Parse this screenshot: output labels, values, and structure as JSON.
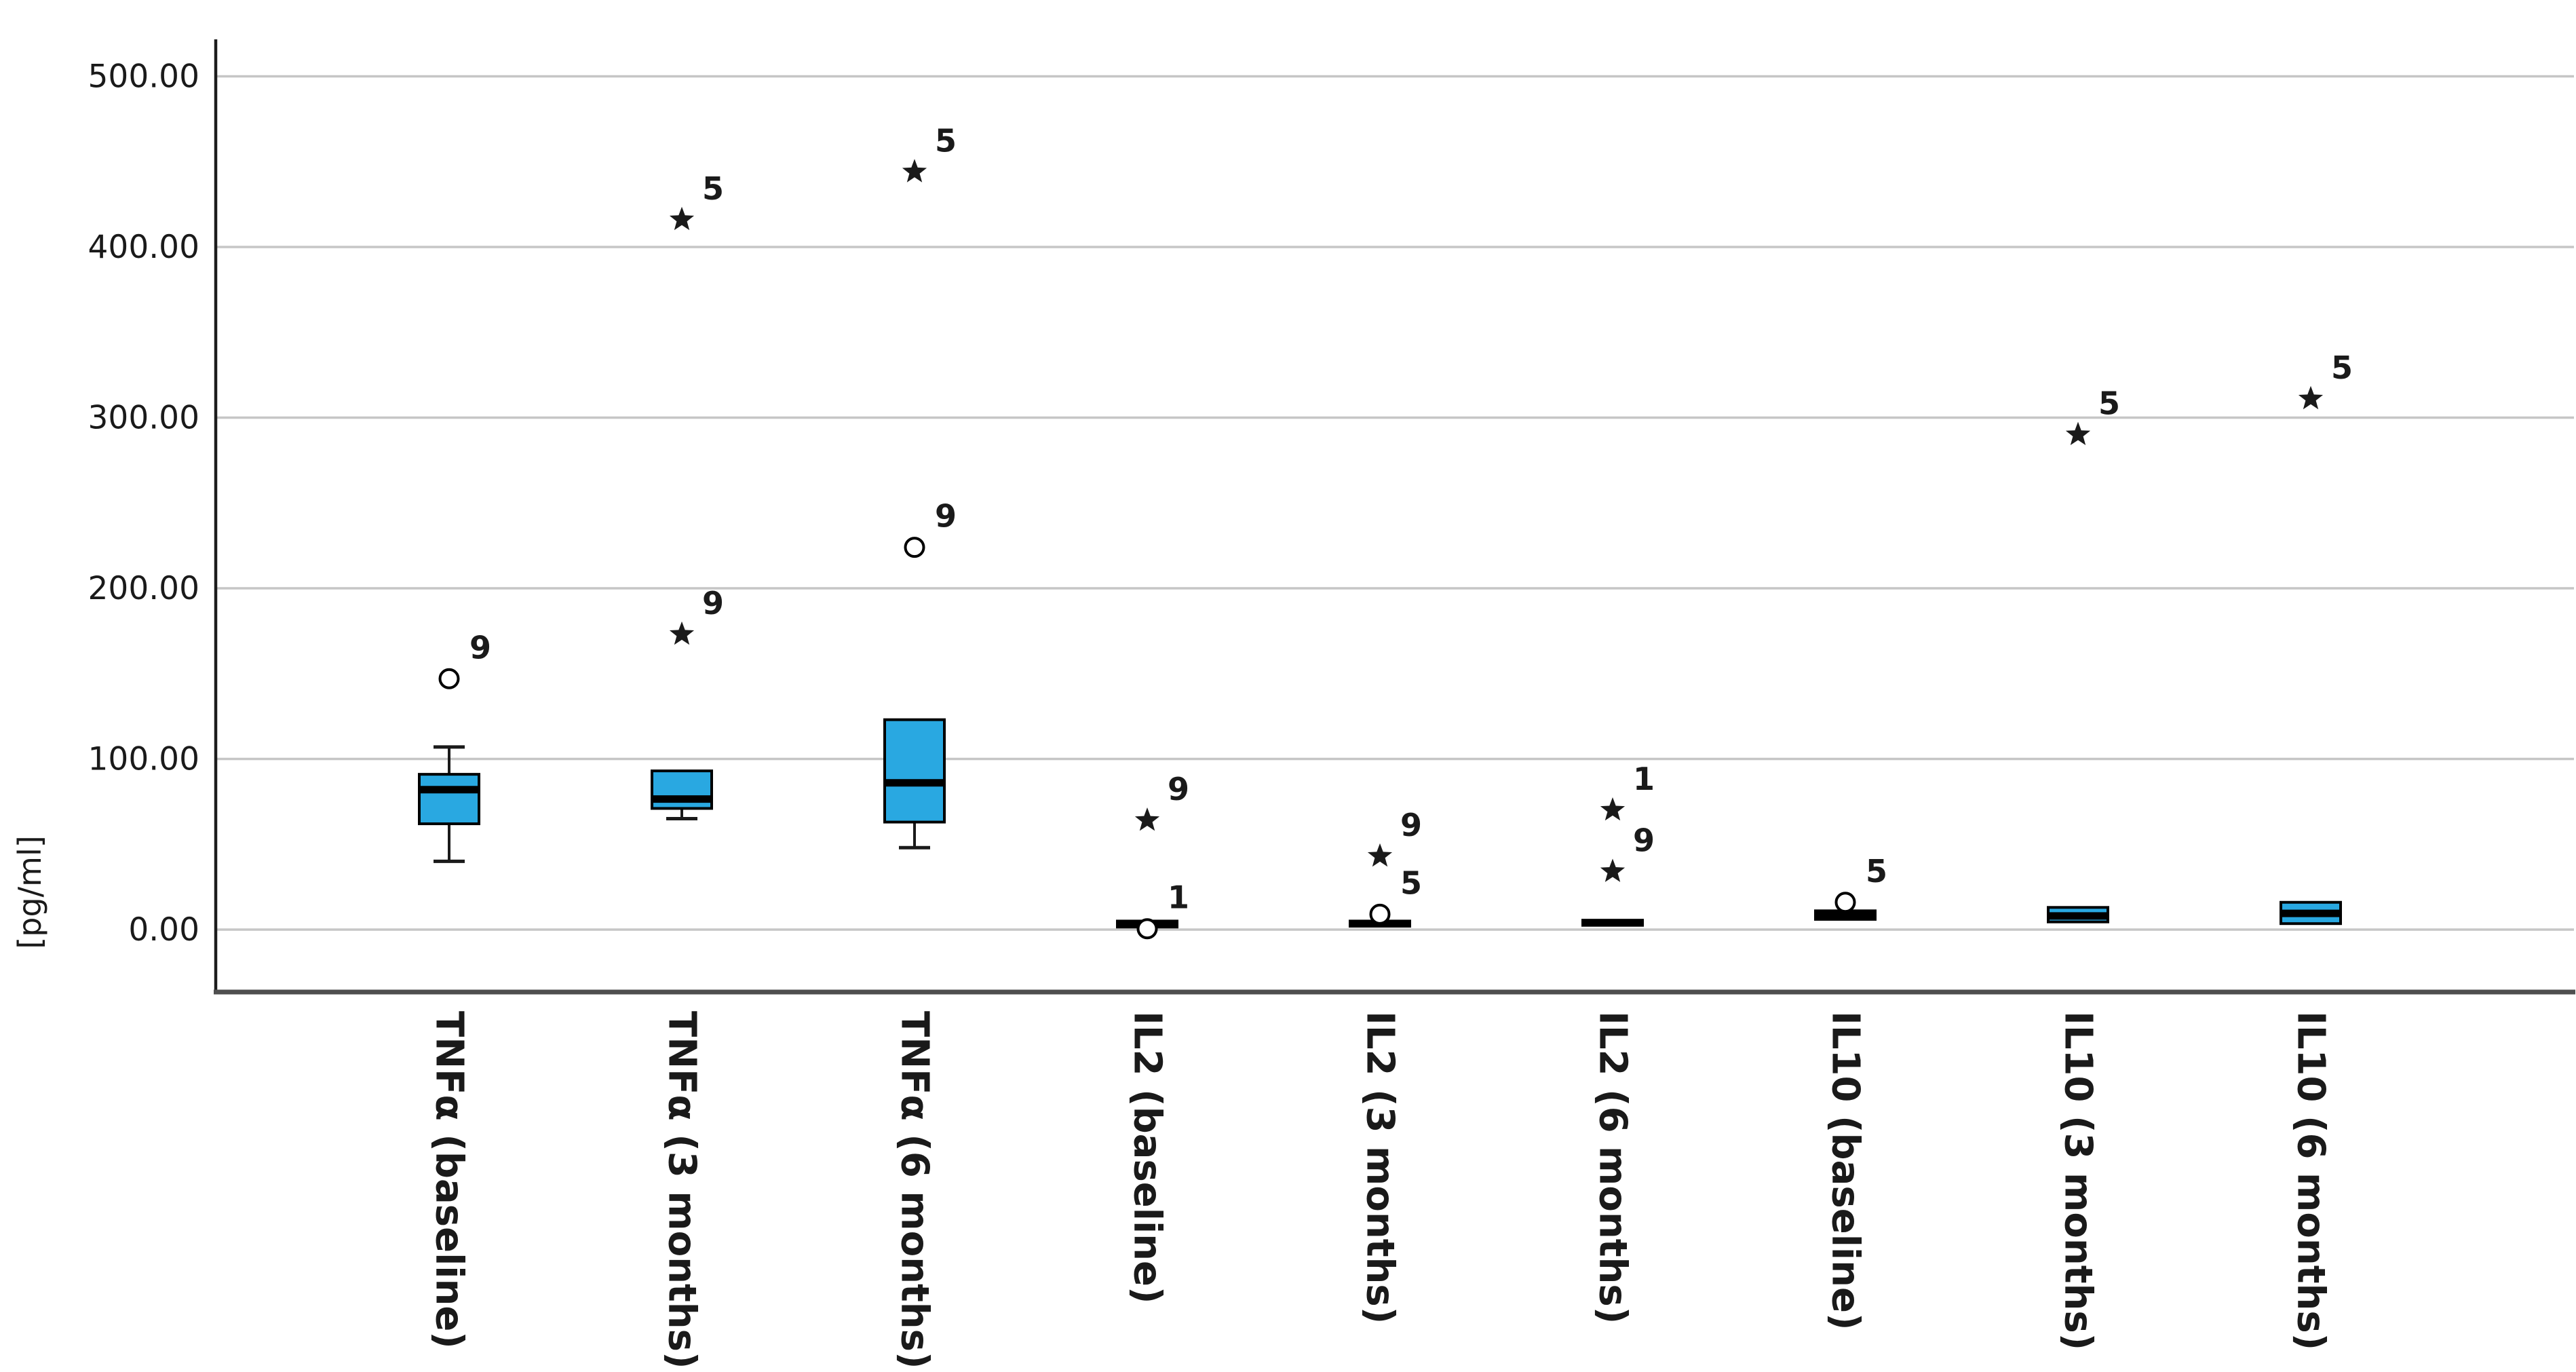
{
  "page": {
    "background": "#ffffff"
  },
  "chart_data": {
    "type": "boxplot",
    "title": "",
    "xlabel": "",
    "ylabel": "[pg/ml]",
    "ylim": [
      -36,
      522
    ],
    "grid": true,
    "legend": "none",
    "yticks": [
      {
        "value": 500,
        "label": "500.00"
      },
      {
        "value": 400,
        "label": "400.00"
      },
      {
        "value": 300,
        "label": "300.00"
      },
      {
        "value": 200,
        "label": "200.00"
      },
      {
        "value": 100,
        "label": "100.00"
      },
      {
        "value": 0,
        "label": "0.00"
      }
    ],
    "categories": [
      "TNFα (baseline)",
      "TNFα (3 months)",
      "TNFα (6 months)",
      "IL2 (baseline)",
      "IL2 (3 months)",
      "IL2 (6 months)",
      "IL10 (baseline)",
      "IL10 (3 months)",
      "IL10 (6 months)"
    ],
    "colors": {
      "box_fill": "#29a8e1",
      "box_stroke": "#000000",
      "median": "#000000",
      "whisker": "#1a1a1a",
      "gridline": "#c6c6c6",
      "y_axis": "#1c1c1c",
      "x_axis": "#4f4f4f",
      "text": "#1a1a1a",
      "outlier_circle_fill": "#ffffff",
      "outlier_star_fill": "#1a1a1a"
    },
    "groups": [
      {
        "label": "TNFα (baseline)",
        "whisker_low": 40,
        "q1": 62,
        "median": 82,
        "q3": 91,
        "whisker_high": 107,
        "outliers": [
          {
            "shape": "circle",
            "value": 147,
            "case": "9"
          }
        ]
      },
      {
        "label": "TNFα (3 months)",
        "whisker_low": 65,
        "q1": 71,
        "median": 76.5,
        "q3": 93,
        "whisker_high": null,
        "outliers": [
          {
            "shape": "star",
            "value": 173,
            "case": "9"
          },
          {
            "shape": "star",
            "value": 416,
            "case": "5"
          }
        ]
      },
      {
        "label": "TNFα (6 months)",
        "whisker_low": 48,
        "q1": 63,
        "median": 86,
        "q3": 123,
        "whisker_high": null,
        "outliers": [
          {
            "shape": "circle",
            "value": 224,
            "case": "9"
          },
          {
            "shape": "star",
            "value": 444,
            "case": "5"
          }
        ]
      },
      {
        "label": "IL2 (baseline)",
        "whisker_low": null,
        "q1": 1.5,
        "median": 3,
        "q3": 5,
        "whisker_high": null,
        "outliers": [
          {
            "shape": "circle",
            "value": 0.5,
            "case": "1"
          },
          {
            "shape": "star",
            "value": 64,
            "case": "9"
          }
        ]
      },
      {
        "label": "IL2 (3 months)",
        "whisker_low": null,
        "q1": 2,
        "median": 3.5,
        "q3": 5,
        "whisker_high": null,
        "outliers": [
          {
            "shape": "circle",
            "value": 9,
            "case": "5"
          },
          {
            "shape": "star",
            "value": 43,
            "case": "9"
          }
        ]
      },
      {
        "label": "IL2 (6 months)",
        "whisker_low": null,
        "q1": 2.5,
        "median": 4,
        "q3": 5.5,
        "whisker_high": null,
        "outliers": [
          {
            "shape": "star",
            "value": 34,
            "case": "9"
          },
          {
            "shape": "star",
            "value": 70,
            "case": "1"
          }
        ]
      },
      {
        "label": "IL10 (baseline)",
        "whisker_low": null,
        "q1": 6,
        "median": 8.5,
        "q3": 11,
        "whisker_high": null,
        "outliers": [
          {
            "shape": "circle",
            "value": 16,
            "case": "5"
          }
        ]
      },
      {
        "label": "IL10 (3 months)",
        "whisker_low": null,
        "q1": 4.5,
        "median": 8,
        "q3": 13,
        "whisker_high": null,
        "outliers": [
          {
            "shape": "star",
            "value": 290,
            "case": "5"
          }
        ]
      },
      {
        "label": "IL10 (6 months)",
        "whisker_low": null,
        "q1": 3.5,
        "median": 9.5,
        "q3": 16,
        "whisker_high": null,
        "outliers": [
          {
            "shape": "star",
            "value": 311,
            "case": "5"
          }
        ]
      }
    ]
  }
}
